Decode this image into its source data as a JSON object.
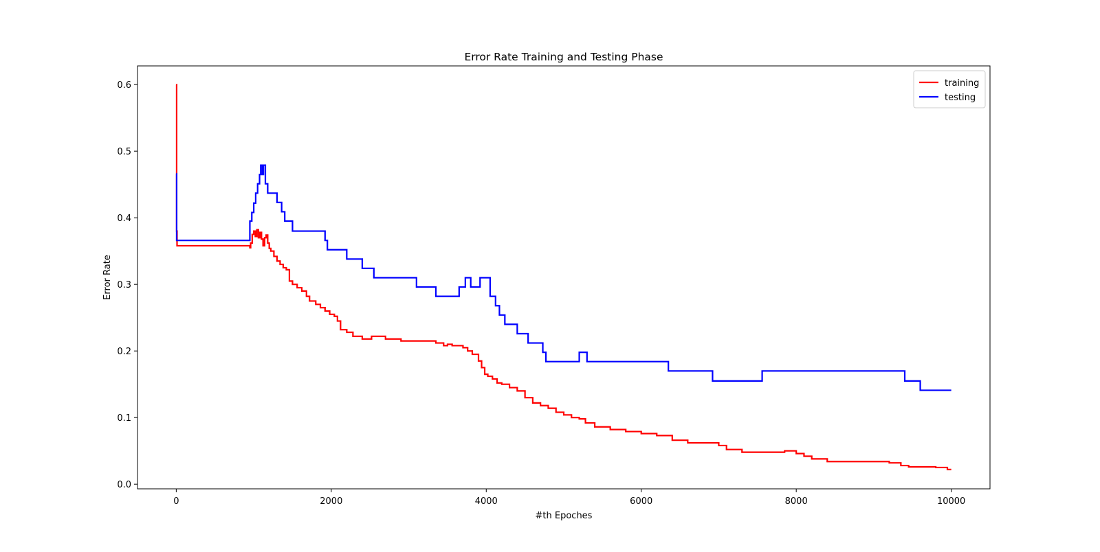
{
  "chart_data": {
    "type": "line",
    "title": "Error Rate Training and Testing Phase",
    "xlabel": "#th Epoches",
    "ylabel": "Error Rate",
    "xlim": [
      -500,
      10500
    ],
    "ylim": [
      -0.007,
      0.628
    ],
    "xticks": [
      0,
      2000,
      4000,
      6000,
      8000,
      10000
    ],
    "yticks": [
      0.0,
      0.1,
      0.2,
      0.3,
      0.4,
      0.5,
      0.6
    ],
    "xtick_labels": [
      "0",
      "2000",
      "4000",
      "6000",
      "8000",
      "10000"
    ],
    "ytick_labels": [
      "0.0",
      "0.1",
      "0.2",
      "0.3",
      "0.4",
      "0.5",
      "0.6"
    ],
    "grid": false,
    "legend_position": "top-right",
    "series": [
      {
        "name": "training",
        "color": "#ff0000",
        "x": [
          0,
          5,
          10,
          940,
          950,
          960,
          980,
          1000,
          1020,
          1040,
          1060,
          1080,
          1100,
          1120,
          1140,
          1160,
          1180,
          1200,
          1220,
          1260,
          1300,
          1340,
          1380,
          1420,
          1460,
          1500,
          1560,
          1620,
          1680,
          1720,
          1800,
          1860,
          1920,
          1980,
          2040,
          2080,
          2120,
          2200,
          2280,
          2400,
          2520,
          2700,
          2900,
          3100,
          3350,
          3450,
          3500,
          3560,
          3640,
          3700,
          3760,
          3820,
          3900,
          3940,
          3980,
          4020,
          4080,
          4140,
          4200,
          4300,
          4400,
          4500,
          4600,
          4700,
          4800,
          4900,
          5000,
          5100,
          5200,
          5280,
          5400,
          5600,
          5800,
          6000,
          6200,
          6400,
          6600,
          6800,
          7000,
          7100,
          7300,
          7600,
          7850,
          8000,
          8100,
          8200,
          8400,
          8600,
          8800,
          9000,
          9200,
          9350,
          9450,
          9600,
          9800,
          9950,
          10000
        ],
        "y": [
          0.6,
          0.38,
          0.358,
          0.358,
          0.355,
          0.362,
          0.375,
          0.38,
          0.372,
          0.382,
          0.37,
          0.378,
          0.368,
          0.358,
          0.37,
          0.374,
          0.362,
          0.354,
          0.35,
          0.342,
          0.335,
          0.33,
          0.325,
          0.322,
          0.305,
          0.3,
          0.295,
          0.29,
          0.282,
          0.275,
          0.27,
          0.265,
          0.26,
          0.255,
          0.252,
          0.245,
          0.232,
          0.228,
          0.222,
          0.218,
          0.222,
          0.218,
          0.215,
          0.215,
          0.212,
          0.208,
          0.21,
          0.208,
          0.208,
          0.205,
          0.2,
          0.195,
          0.185,
          0.175,
          0.165,
          0.162,
          0.158,
          0.152,
          0.15,
          0.145,
          0.14,
          0.13,
          0.122,
          0.118,
          0.114,
          0.108,
          0.104,
          0.1,
          0.098,
          0.092,
          0.086,
          0.082,
          0.079,
          0.076,
          0.073,
          0.066,
          0.062,
          0.062,
          0.058,
          0.052,
          0.048,
          0.048,
          0.05,
          0.046,
          0.042,
          0.038,
          0.034,
          0.034,
          0.034,
          0.034,
          0.032,
          0.028,
          0.026,
          0.026,
          0.025,
          0.022,
          0.022
        ]
      },
      {
        "name": "testing",
        "color": "#0000ff",
        "x": [
          0,
          5,
          940,
          950,
          975,
          1000,
          1025,
          1050,
          1075,
          1090,
          1110,
          1125,
          1150,
          1180,
          1300,
          1360,
          1400,
          1500,
          1900,
          1920,
          1950,
          2200,
          2400,
          2550,
          3100,
          3350,
          3650,
          3730,
          3800,
          3920,
          4050,
          4120,
          4170,
          4240,
          4400,
          4540,
          4730,
          4770,
          5200,
          5300,
          6350,
          6920,
          7560,
          9400,
          9600,
          10000
        ],
        "y": [
          0.466,
          0.366,
          0.366,
          0.395,
          0.408,
          0.422,
          0.437,
          0.451,
          0.465,
          0.479,
          0.465,
          0.479,
          0.451,
          0.437,
          0.423,
          0.409,
          0.395,
          0.38,
          0.38,
          0.366,
          0.352,
          0.338,
          0.324,
          0.31,
          0.296,
          0.282,
          0.296,
          0.31,
          0.296,
          0.31,
          0.282,
          0.268,
          0.254,
          0.24,
          0.226,
          0.212,
          0.198,
          0.184,
          0.198,
          0.184,
          0.17,
          0.155,
          0.17,
          0.155,
          0.141,
          0.141
        ]
      }
    ]
  }
}
